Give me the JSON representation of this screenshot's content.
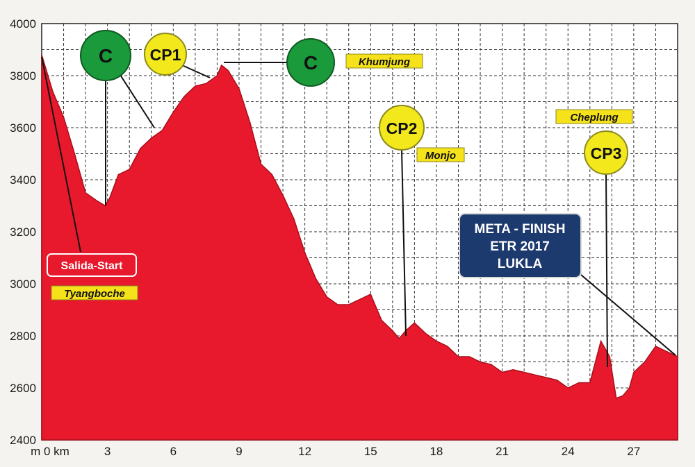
{
  "chart_data": {
    "type": "area",
    "xlim": [
      0,
      29
    ],
    "ylim": [
      2400,
      4000
    ],
    "grid": true,
    "colors": {
      "fill": "#e8192c",
      "stroke": "#a80f1c",
      "marker_yellow": "#f2e81c",
      "marker_green": "#1a9a3a",
      "tag": "#f5e21a",
      "start_box": "#e8192c",
      "finish_box": "#1c3a6e"
    },
    "x_ticks": [
      0,
      3,
      6,
      9,
      12,
      15,
      18,
      21,
      24,
      27
    ],
    "x_tick_labels": [
      "m 0 km",
      "3",
      "6",
      "9",
      "12",
      "15",
      "18",
      "21",
      "24",
      "27"
    ],
    "y_ticks": [
      2400,
      2600,
      2800,
      3000,
      3200,
      3400,
      3600,
      3800,
      4000
    ],
    "y_tick_labels": [
      "2400",
      "2600",
      "2800",
      "3000",
      "3200",
      "3400",
      "3600",
      "3800",
      "4000"
    ],
    "x": [
      0,
      0.5,
      1.0,
      1.5,
      2.0,
      2.5,
      2.9,
      3.1,
      3.5,
      4.0,
      4.5,
      5.0,
      5.5,
      6.0,
      6.5,
      7.0,
      7.5,
      8.0,
      8.2,
      8.5,
      9.0,
      9.5,
      10.0,
      10.5,
      11.0,
      11.5,
      12.0,
      12.5,
      13.0,
      13.5,
      14.0,
      14.5,
      15.0,
      15.3,
      15.5,
      16.0,
      16.3,
      16.6,
      17.0,
      17.5,
      18.0,
      18.5,
      19.0,
      19.5,
      20.0,
      20.5,
      21.0,
      21.5,
      22.0,
      22.5,
      23.0,
      23.5,
      24.0,
      24.5,
      25.0,
      25.5,
      25.9,
      26.2,
      26.5,
      26.8,
      27.0,
      27.5,
      28.0,
      28.5,
      29.0
    ],
    "y": [
      3880,
      3740,
      3640,
      3500,
      3350,
      3320,
      3300,
      3330,
      3420,
      3440,
      3520,
      3560,
      3590,
      3660,
      3720,
      3760,
      3770,
      3800,
      3840,
      3820,
      3750,
      3620,
      3460,
      3420,
      3340,
      3250,
      3120,
      3020,
      2950,
      2920,
      2920,
      2940,
      2960,
      2900,
      2860,
      2820,
      2790,
      2820,
      2850,
      2810,
      2780,
      2760,
      2720,
      2720,
      2700,
      2690,
      2660,
      2670,
      2660,
      2650,
      2640,
      2630,
      2600,
      2620,
      2620,
      2780,
      2720,
      2560,
      2570,
      2600,
      2660,
      2700,
      2760,
      2740,
      2720
    ],
    "markers": [
      {
        "label": "C",
        "type": "circle",
        "color": "green",
        "anchor_x": 3.0
      },
      {
        "label": "CP1",
        "type": "circle",
        "color": "yellow",
        "anchor_x": 7.9
      },
      {
        "label": "C",
        "type": "circle",
        "color": "green",
        "anchor_x": 8.3
      },
      {
        "label": "CP2",
        "type": "circle",
        "color": "yellow",
        "anchor_x": 16.5
      },
      {
        "label": "CP3",
        "type": "circle",
        "color": "yellow",
        "anchor_x": 25.7
      }
    ],
    "tags": {
      "khumjung": "Khumjung",
      "monjo": "Monjo",
      "cheplung": "Cheplung",
      "tyangboche": "Tyangboche",
      "start": "Salida-Start",
      "finish_line1": "META - FINISH",
      "finish_line2": "ETR 2017",
      "finish_line3": "LUKLA"
    }
  }
}
